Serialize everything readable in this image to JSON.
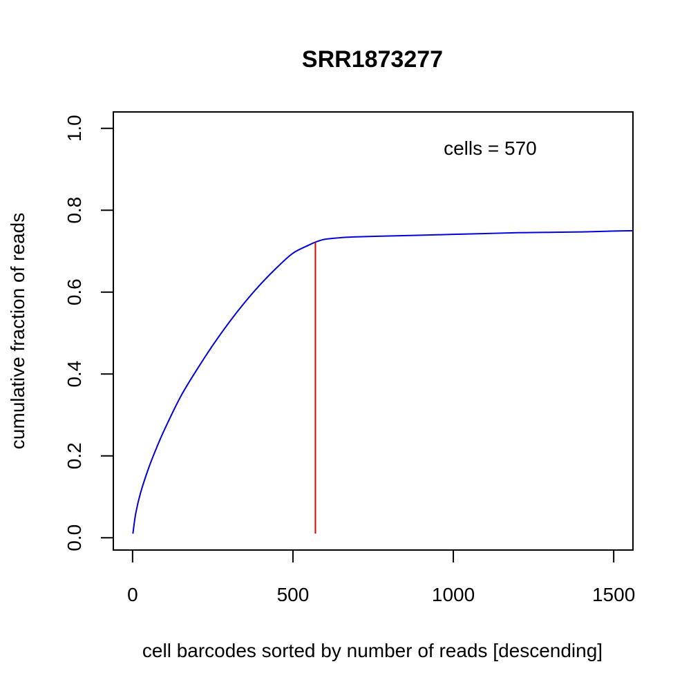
{
  "chart_data": {
    "type": "line",
    "title": "SRR1873277",
    "xlabel": "cell barcodes sorted by number of reads [descending]",
    "ylabel": "cumulative fraction of reads",
    "xlim": [
      -60,
      1560
    ],
    "ylim": [
      -0.03,
      1.04
    ],
    "x_ticks": [
      0,
      500,
      1000,
      1500
    ],
    "x_tick_labels": [
      "0",
      "500",
      "1000",
      "1500"
    ],
    "y_ticks": [
      0.0,
      0.2,
      0.4,
      0.6,
      0.8,
      1.0
    ],
    "y_tick_labels": [
      "0.0",
      "0.2",
      "0.4",
      "0.6",
      "0.8",
      "1.0"
    ],
    "grid": false,
    "series": [
      {
        "color": "#0000dd",
        "x": [
          1,
          10,
          25,
          50,
          75,
          100,
          150,
          200,
          250,
          300,
          350,
          400,
          450,
          500,
          550,
          570,
          600,
          650,
          700,
          800,
          900,
          1000,
          1100,
          1200,
          1300,
          1400,
          1500,
          1560
        ],
        "y": [
          0.01,
          0.06,
          0.11,
          0.17,
          0.22,
          0.265,
          0.345,
          0.41,
          0.47,
          0.525,
          0.575,
          0.62,
          0.66,
          0.695,
          0.715,
          0.722,
          0.729,
          0.733,
          0.735,
          0.737,
          0.739,
          0.741,
          0.743,
          0.745,
          0.746,
          0.747,
          0.749,
          0.75
        ]
      }
    ],
    "cutoff_line": {
      "x": 570,
      "y_from": 0.01,
      "y_to": 0.722,
      "color": "#dd0000"
    },
    "annotation": {
      "text": "cells = 570",
      "x": 1115,
      "y": 0.935
    }
  }
}
